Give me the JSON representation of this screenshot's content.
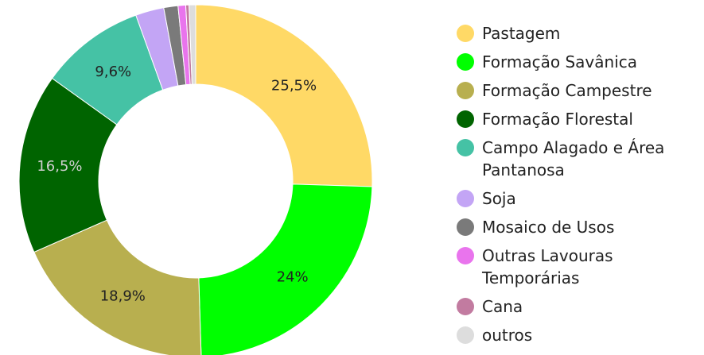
{
  "chart_data": {
    "type": "pie",
    "categories": [
      "Pastagem",
      "Formação Savânica",
      "Formação Campestre",
      "Formação Florestal",
      "Campo Alagado e Área Pantanosa",
      "Soja",
      "Mosaico de Usos",
      "Outras Lavouras Temporárias",
      "Cana",
      "outros"
    ],
    "values": [
      25.5,
      24,
      18.9,
      16.5,
      9.6,
      2.6,
      1.3,
      0.7,
      0.3,
      0.6
    ],
    "value_labels": [
      "25,5%",
      "24%",
      "18,9%",
      "16,5%",
      "9,6%",
      null,
      null,
      null,
      null,
      null
    ],
    "colors": [
      "#FFD966",
      "#00FF00",
      "#B8AF4F",
      "#006400",
      "#45C2A5",
      "#C3A5F5",
      "#7A7A7A",
      "#E974ED",
      "#C27BA0",
      "#DDDDDD"
    ],
    "legend": "right"
  }
}
